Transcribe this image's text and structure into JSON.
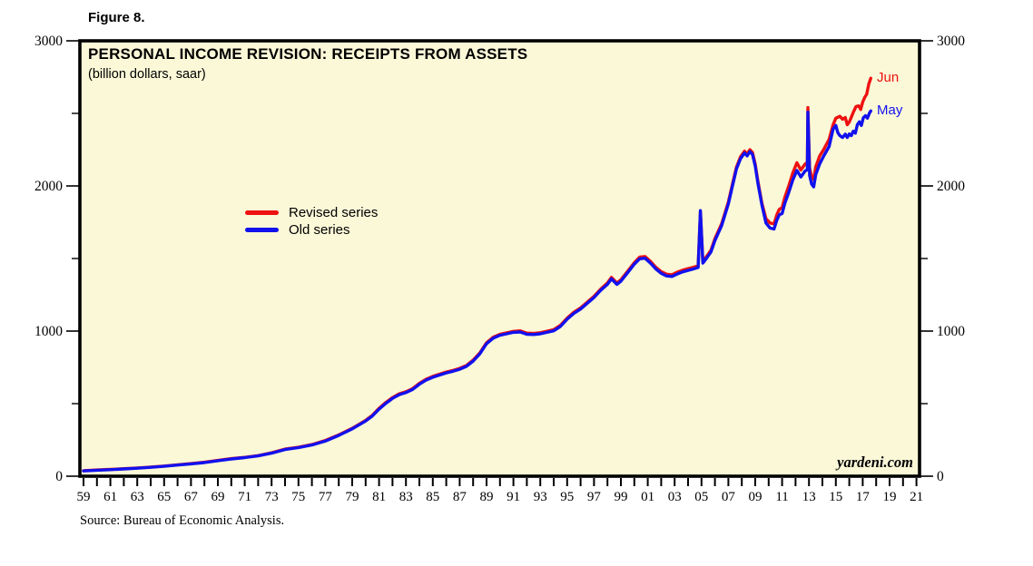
{
  "figure_label": "Figure 8.",
  "chart": {
    "title": "PERSONAL INCOME REVISION: RECEIPTS FROM ASSETS",
    "subtitle": "(billion dollars, saar)",
    "watermark": "yardeni.com",
    "source": "Source: Bureau of Economic Analysis."
  },
  "colors": {
    "revised": "#ee1111",
    "old": "#1111ee",
    "plot_background": "#fbf8d8",
    "axis": "#000000"
  },
  "chart_data": {
    "type": "line",
    "title": "PERSONAL INCOME REVISION: RECEIPTS FROM ASSETS",
    "subtitle": "(billion dollars, saar)",
    "xlabel": "",
    "ylabel": "billion dollars, saar",
    "xlim": [
      1959,
      2021
    ],
    "ylim": [
      0,
      3000
    ],
    "grid": false,
    "legend_position": "inside-left-middle",
    "y_axis_sides": "both",
    "y_major_ticks": [
      0,
      1000,
      2000,
      3000
    ],
    "y_major_labels": [
      "0",
      "1000",
      "2000",
      "3000"
    ],
    "y_minor_ticks": [
      500,
      1500,
      2500
    ],
    "x_tick_every_years": 1,
    "x_label_every_years": 2,
    "x_tick_labels": [
      "59",
      "61",
      "63",
      "65",
      "67",
      "69",
      "71",
      "73",
      "75",
      "77",
      "79",
      "81",
      "83",
      "85",
      "87",
      "89",
      "91",
      "93",
      "95",
      "97",
      "99",
      "01",
      "03",
      "05",
      "07",
      "09",
      "11",
      "13",
      "15",
      "17",
      "19",
      "21"
    ],
    "series": [
      {
        "name": "Revised series",
        "color": "#ee1111",
        "end_label": "Jun",
        "points": [
          [
            1959,
            38
          ],
          [
            1960,
            43
          ],
          [
            1961,
            47
          ],
          [
            1962,
            52
          ],
          [
            1963,
            57
          ],
          [
            1964,
            63
          ],
          [
            1965,
            70
          ],
          [
            1966,
            79
          ],
          [
            1967,
            87
          ],
          [
            1968,
            96
          ],
          [
            1969,
            109
          ],
          [
            1970,
            121
          ],
          [
            1971,
            130
          ],
          [
            1972,
            142
          ],
          [
            1973,
            162
          ],
          [
            1974,
            187
          ],
          [
            1975,
            200
          ],
          [
            1976,
            218
          ],
          [
            1977,
            246
          ],
          [
            1978,
            285
          ],
          [
            1979,
            330
          ],
          [
            1980,
            385
          ],
          [
            1980.5,
            420
          ],
          [
            1981,
            468
          ],
          [
            1981.5,
            508
          ],
          [
            1982,
            542
          ],
          [
            1982.5,
            568
          ],
          [
            1983,
            582
          ],
          [
            1983.5,
            604
          ],
          [
            1984,
            640
          ],
          [
            1984.5,
            668
          ],
          [
            1985,
            688
          ],
          [
            1985.5,
            703
          ],
          [
            1986,
            718
          ],
          [
            1986.5,
            729
          ],
          [
            1987,
            743
          ],
          [
            1987.5,
            763
          ],
          [
            1988,
            800
          ],
          [
            1988.5,
            850
          ],
          [
            1989,
            920
          ],
          [
            1989.5,
            958
          ],
          [
            1990,
            978
          ],
          [
            1990.5,
            988
          ],
          [
            1991,
            998
          ],
          [
            1991.5,
            1002
          ],
          [
            1992,
            986
          ],
          [
            1992.5,
            984
          ],
          [
            1993,
            989
          ],
          [
            1993.5,
            999
          ],
          [
            1994,
            1010
          ],
          [
            1994.5,
            1040
          ],
          [
            1995,
            1090
          ],
          [
            1995.5,
            1130
          ],
          [
            1996,
            1160
          ],
          [
            1996.5,
            1200
          ],
          [
            1997,
            1240
          ],
          [
            1997.5,
            1290
          ],
          [
            1998,
            1332
          ],
          [
            1998.3,
            1370
          ],
          [
            1998.7,
            1332
          ],
          [
            1999,
            1354
          ],
          [
            1999.5,
            1412
          ],
          [
            2000,
            1472
          ],
          [
            2000.4,
            1510
          ],
          [
            2000.8,
            1514
          ],
          [
            2001.2,
            1480
          ],
          [
            2001.6,
            1440
          ],
          [
            2002,
            1410
          ],
          [
            2002.4,
            1392
          ],
          [
            2002.8,
            1388
          ],
          [
            2003.2,
            1406
          ],
          [
            2003.6,
            1420
          ],
          [
            2004,
            1430
          ],
          [
            2004.4,
            1440
          ],
          [
            2004.75,
            1450
          ],
          [
            2004.92,
            1820
          ],
          [
            2005.1,
            1480
          ],
          [
            2005.4,
            1517
          ],
          [
            2005.7,
            1557
          ],
          [
            2006,
            1637
          ],
          [
            2006.5,
            1740
          ],
          [
            2007,
            1890
          ],
          [
            2007.3,
            2010
          ],
          [
            2007.6,
            2130
          ],
          [
            2007.9,
            2200
          ],
          [
            2008.2,
            2240
          ],
          [
            2008.4,
            2220
          ],
          [
            2008.6,
            2250
          ],
          [
            2008.8,
            2230
          ],
          [
            2009,
            2150
          ],
          [
            2009.2,
            2030
          ],
          [
            2009.5,
            1880
          ],
          [
            2009.8,
            1775
          ],
          [
            2010.1,
            1745
          ],
          [
            2010.4,
            1738
          ],
          [
            2010.6,
            1800
          ],
          [
            2010.8,
            1840
          ],
          [
            2011,
            1850
          ],
          [
            2011.2,
            1922
          ],
          [
            2011.5,
            2002
          ],
          [
            2011.8,
            2090
          ],
          [
            2012.1,
            2160
          ],
          [
            2012.4,
            2110
          ],
          [
            2012.7,
            2150
          ],
          [
            2012.88,
            2162
          ],
          [
            2012.92,
            2540
          ],
          [
            2013.05,
            2122
          ],
          [
            2013.2,
            2062
          ],
          [
            2013.35,
            2044
          ],
          [
            2013.5,
            2132
          ],
          [
            2013.8,
            2207
          ],
          [
            2014.1,
            2252
          ],
          [
            2014.5,
            2322
          ],
          [
            2014.8,
            2422
          ],
          [
            2015,
            2467
          ],
          [
            2015.3,
            2480
          ],
          [
            2015.5,
            2460
          ],
          [
            2015.7,
            2472
          ],
          [
            2015.85,
            2422
          ],
          [
            2016,
            2440
          ],
          [
            2016.3,
            2507
          ],
          [
            2016.5,
            2547
          ],
          [
            2016.7,
            2552
          ],
          [
            2016.85,
            2527
          ],
          [
            2017,
            2579
          ],
          [
            2017.15,
            2610
          ],
          [
            2017.3,
            2632
          ],
          [
            2017.45,
            2702
          ],
          [
            2017.6,
            2742
          ]
        ]
      },
      {
        "name": "Old series",
        "color": "#1111ee",
        "end_label": "May",
        "points": [
          [
            1959,
            36
          ],
          [
            1960,
            41
          ],
          [
            1961,
            45
          ],
          [
            1962,
            50
          ],
          [
            1963,
            55
          ],
          [
            1964,
            61
          ],
          [
            1965,
            68
          ],
          [
            1966,
            77
          ],
          [
            1967,
            85
          ],
          [
            1968,
            94
          ],
          [
            1969,
            107
          ],
          [
            1970,
            119
          ],
          [
            1971,
            128
          ],
          [
            1972,
            140
          ],
          [
            1973,
            159
          ],
          [
            1974,
            184
          ],
          [
            1975,
            197
          ],
          [
            1976,
            215
          ],
          [
            1977,
            242
          ],
          [
            1978,
            281
          ],
          [
            1979,
            326
          ],
          [
            1980,
            380
          ],
          [
            1980.5,
            415
          ],
          [
            1981,
            462
          ],
          [
            1981.5,
            502
          ],
          [
            1982,
            536
          ],
          [
            1982.5,
            562
          ],
          [
            1983,
            576
          ],
          [
            1983.5,
            598
          ],
          [
            1984,
            634
          ],
          [
            1984.5,
            662
          ],
          [
            1985,
            682
          ],
          [
            1985.5,
            697
          ],
          [
            1986,
            712
          ],
          [
            1986.5,
            723
          ],
          [
            1987,
            737
          ],
          [
            1987.5,
            757
          ],
          [
            1988,
            793
          ],
          [
            1988.5,
            843
          ],
          [
            1989,
            913
          ],
          [
            1989.5,
            951
          ],
          [
            1990,
            971
          ],
          [
            1990.5,
            981
          ],
          [
            1991,
            991
          ],
          [
            1991.5,
            994
          ],
          [
            1992,
            978
          ],
          [
            1992.5,
            976
          ],
          [
            1993,
            981
          ],
          [
            1993.5,
            991
          ],
          [
            1994,
            1002
          ],
          [
            1994.5,
            1032
          ],
          [
            1995,
            1082
          ],
          [
            1995.5,
            1122
          ],
          [
            1996,
            1152
          ],
          [
            1996.5,
            1192
          ],
          [
            1997,
            1231
          ],
          [
            1997.5,
            1281
          ],
          [
            1998,
            1322
          ],
          [
            1998.3,
            1360
          ],
          [
            1998.7,
            1322
          ],
          [
            1999,
            1344
          ],
          [
            1999.5,
            1402
          ],
          [
            2000,
            1461
          ],
          [
            2000.4,
            1498
          ],
          [
            2000.8,
            1502
          ],
          [
            2001.2,
            1468
          ],
          [
            2001.6,
            1428
          ],
          [
            2002,
            1398
          ],
          [
            2002.4,
            1380
          ],
          [
            2002.8,
            1376
          ],
          [
            2003.2,
            1394
          ],
          [
            2003.6,
            1408
          ],
          [
            2004,
            1418
          ],
          [
            2004.4,
            1428
          ],
          [
            2004.75,
            1438
          ],
          [
            2004.92,
            1830
          ],
          [
            2005.1,
            1468
          ],
          [
            2005.4,
            1505
          ],
          [
            2005.7,
            1545
          ],
          [
            2006,
            1624
          ],
          [
            2006.5,
            1727
          ],
          [
            2007,
            1877
          ],
          [
            2007.3,
            1997
          ],
          [
            2007.6,
            2117
          ],
          [
            2007.9,
            2187
          ],
          [
            2008.2,
            2227
          ],
          [
            2008.4,
            2207
          ],
          [
            2008.6,
            2237
          ],
          [
            2008.8,
            2217
          ],
          [
            2009,
            2137
          ],
          [
            2009.2,
            2017
          ],
          [
            2009.5,
            1867
          ],
          [
            2009.8,
            1745
          ],
          [
            2010.1,
            1710
          ],
          [
            2010.4,
            1703
          ],
          [
            2010.6,
            1763
          ],
          [
            2010.8,
            1802
          ],
          [
            2011,
            1810
          ],
          [
            2011.2,
            1880
          ],
          [
            2011.5,
            1957
          ],
          [
            2011.8,
            2042
          ],
          [
            2012.1,
            2107
          ],
          [
            2012.4,
            2062
          ],
          [
            2012.7,
            2102
          ],
          [
            2012.88,
            2112
          ],
          [
            2012.92,
            2508
          ],
          [
            2013.05,
            2072
          ],
          [
            2013.2,
            2012
          ],
          [
            2013.35,
            1994
          ],
          [
            2013.5,
            2077
          ],
          [
            2013.8,
            2152
          ],
          [
            2014.1,
            2207
          ],
          [
            2014.5,
            2272
          ],
          [
            2014.8,
            2392
          ],
          [
            2015,
            2417
          ],
          [
            2015.15,
            2367
          ],
          [
            2015.3,
            2347
          ],
          [
            2015.5,
            2334
          ],
          [
            2015.7,
            2357
          ],
          [
            2015.85,
            2334
          ],
          [
            2016,
            2358
          ],
          [
            2016.15,
            2347
          ],
          [
            2016.3,
            2377
          ],
          [
            2016.45,
            2364
          ],
          [
            2016.6,
            2422
          ],
          [
            2016.75,
            2442
          ],
          [
            2016.9,
            2417
          ],
          [
            2017.05,
            2470
          ],
          [
            2017.2,
            2484
          ],
          [
            2017.35,
            2467
          ],
          [
            2017.5,
            2502
          ],
          [
            2017.6,
            2517
          ]
        ]
      }
    ]
  }
}
